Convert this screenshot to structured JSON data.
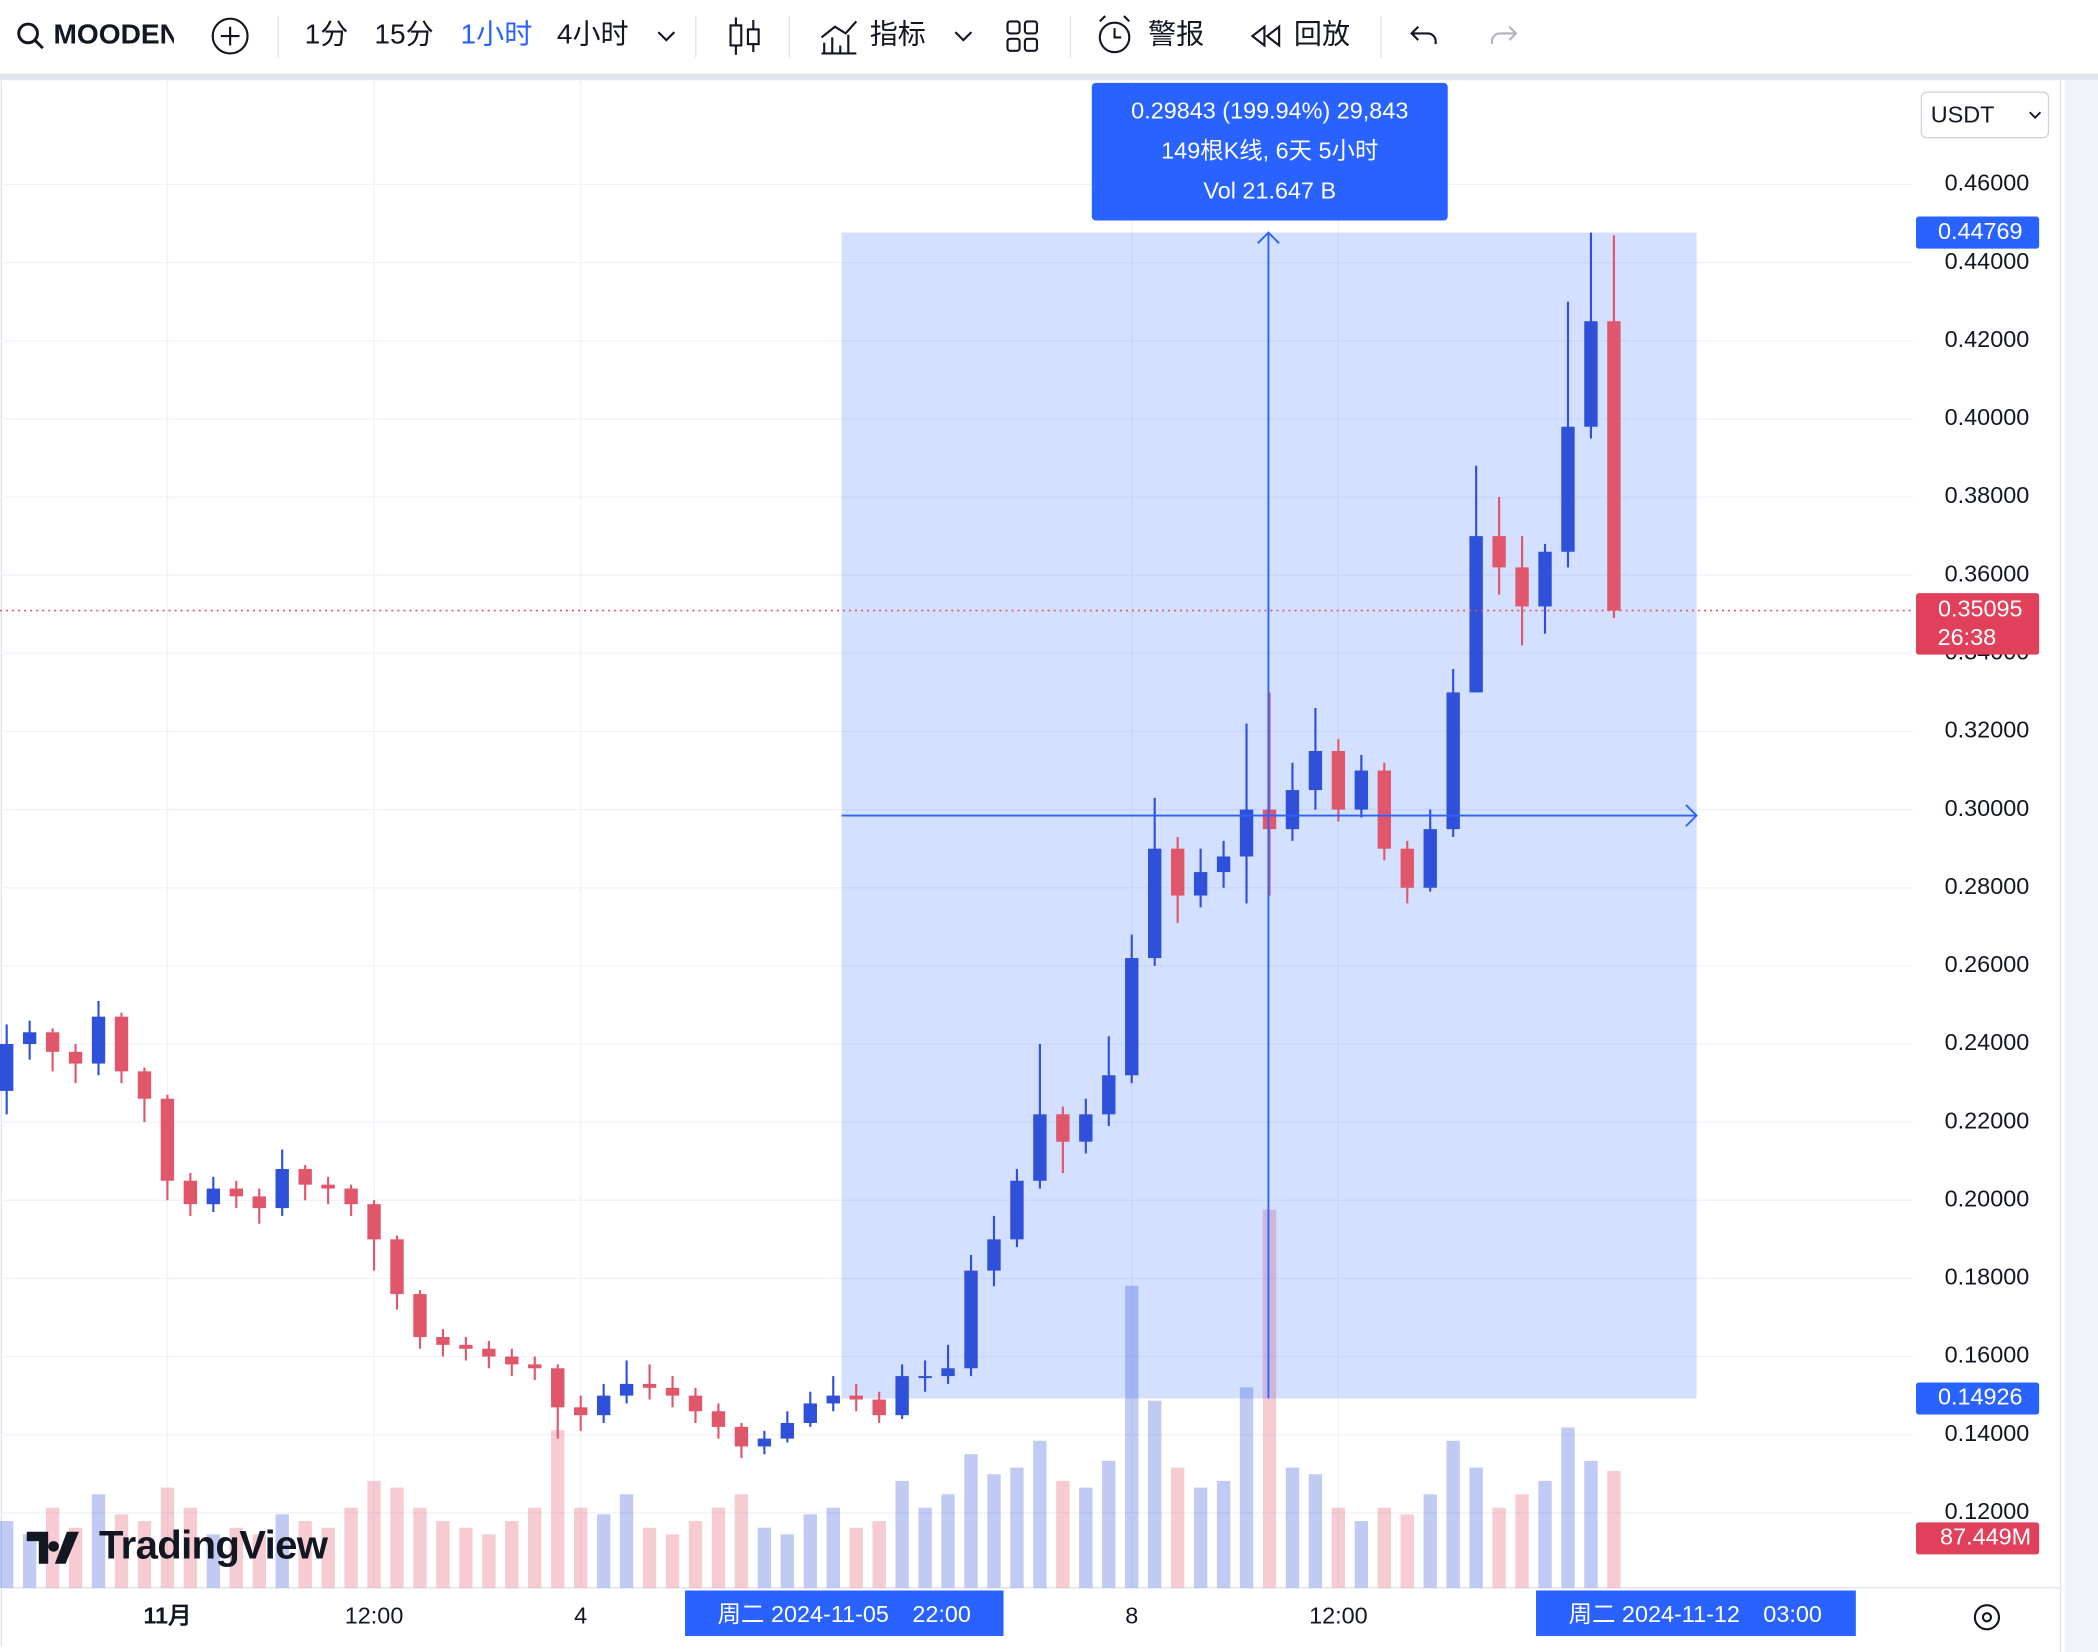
{
  "toolbar": {
    "symbol": "MOODEN",
    "intervals": [
      "1分",
      "15分",
      "1小时",
      "4小时"
    ],
    "indicators": "指标",
    "alerts": "警报",
    "replay": "回放"
  },
  "chart_data": {
    "type": "candlestick",
    "currency": "USDT",
    "brand": "TradingView",
    "categories": [
      null,
      null,
      null,
      null,
      null,
      null,
      null,
      "11月",
      null,
      null,
      null,
      null,
      null,
      null,
      null,
      null,
      "12:00",
      null,
      null,
      null,
      null,
      null,
      null,
      null,
      null,
      "4",
      null,
      null,
      null,
      null,
      null,
      null,
      null,
      null,
      null,
      null,
      null,
      null,
      null,
      null,
      null,
      null,
      null,
      null,
      null,
      null,
      null,
      null,
      null,
      "8",
      null,
      null,
      null,
      null,
      null,
      null,
      null,
      null,
      "12:00",
      null,
      null,
      null,
      null,
      null,
      null,
      null,
      null,
      null,
      null,
      null,
      null
    ],
    "open": [
      0.228,
      0.24,
      0.243,
      0.238,
      0.235,
      0.247,
      0.233,
      0.226,
      0.205,
      0.199,
      0.203,
      0.201,
      0.198,
      0.208,
      0.204,
      0.203,
      0.199,
      0.19,
      0.176,
      0.165,
      0.163,
      0.162,
      0.16,
      0.158,
      0.157,
      0.147,
      0.145,
      0.15,
      0.153,
      0.152,
      0.15,
      0.146,
      0.142,
      0.137,
      0.139,
      0.143,
      0.148,
      0.15,
      0.149,
      0.145,
      0.155,
      0.155,
      0.157,
      0.182,
      0.19,
      0.205,
      0.222,
      0.215,
      0.222,
      0.232,
      0.262,
      0.29,
      0.278,
      0.284,
      0.288,
      0.3,
      0.295,
      0.305,
      0.315,
      0.3,
      0.31,
      0.29,
      0.28,
      0.295,
      0.33,
      0.37,
      0.362,
      0.352,
      0.366,
      0.398,
      0.425
    ],
    "high": [
      0.245,
      0.246,
      0.244,
      0.24,
      0.251,
      0.248,
      0.234,
      0.227,
      0.207,
      0.206,
      0.205,
      0.203,
      0.213,
      0.209,
      0.206,
      0.204,
      0.2,
      0.191,
      0.177,
      0.167,
      0.165,
      0.164,
      0.162,
      0.16,
      0.158,
      0.15,
      0.153,
      0.159,
      0.158,
      0.155,
      0.152,
      0.148,
      0.143,
      0.141,
      0.146,
      0.151,
      0.155,
      0.153,
      0.151,
      0.158,
      0.159,
      0.163,
      0.186,
      0.196,
      0.208,
      0.24,
      0.224,
      0.226,
      0.242,
      0.268,
      0.303,
      0.293,
      0.29,
      0.292,
      0.322,
      0.33,
      0.312,
      0.326,
      0.318,
      0.314,
      0.312,
      0.292,
      0.3,
      0.336,
      0.388,
      0.38,
      0.37,
      0.368,
      0.43,
      0.44769,
      0.447
    ],
    "low": [
      0.222,
      0.236,
      0.233,
      0.23,
      0.232,
      0.23,
      0.22,
      0.2,
      0.196,
      0.197,
      0.198,
      0.194,
      0.196,
      0.2,
      0.199,
      0.196,
      0.182,
      0.172,
      0.162,
      0.16,
      0.159,
      0.157,
      0.155,
      0.154,
      0.139,
      0.141,
      0.143,
      0.148,
      0.149,
      0.147,
      0.143,
      0.139,
      0.134,
      0.135,
      0.138,
      0.142,
      0.146,
      0.146,
      0.143,
      0.144,
      0.151,
      0.153,
      0.155,
      0.178,
      0.188,
      0.203,
      0.207,
      0.212,
      0.219,
      0.23,
      0.26,
      0.271,
      0.275,
      0.28,
      0.276,
      0.278,
      0.292,
      0.3,
      0.297,
      0.298,
      0.287,
      0.276,
      0.279,
      0.293,
      0.33,
      0.355,
      0.342,
      0.345,
      0.362,
      0.395,
      0.349
    ],
    "close": [
      0.24,
      0.243,
      0.238,
      0.235,
      0.247,
      0.233,
      0.226,
      0.205,
      0.199,
      0.203,
      0.201,
      0.198,
      0.208,
      0.204,
      0.203,
      0.199,
      0.19,
      0.176,
      0.165,
      0.163,
      0.162,
      0.16,
      0.158,
      0.157,
      0.147,
      0.145,
      0.15,
      0.153,
      0.152,
      0.15,
      0.146,
      0.142,
      0.137,
      0.139,
      0.143,
      0.148,
      0.15,
      0.149,
      0.145,
      0.155,
      0.155,
      0.157,
      0.182,
      0.19,
      0.205,
      0.222,
      0.215,
      0.222,
      0.232,
      0.262,
      0.29,
      0.278,
      0.284,
      0.288,
      0.3,
      0.295,
      0.305,
      0.315,
      0.3,
      0.31,
      0.29,
      0.28,
      0.295,
      0.33,
      0.37,
      0.362,
      0.352,
      0.366,
      0.398,
      0.425,
      0.35095
    ],
    "volume": [
      50,
      40,
      60,
      45,
      70,
      55,
      50,
      75,
      60,
      40,
      45,
      40,
      55,
      50,
      45,
      60,
      80,
      75,
      60,
      50,
      45,
      40,
      50,
      60,
      118,
      60,
      55,
      70,
      45,
      40,
      50,
      60,
      70,
      45,
      40,
      55,
      60,
      45,
      50,
      80,
      60,
      70,
      100,
      85,
      90,
      110,
      80,
      75,
      95,
      226,
      140,
      90,
      75,
      80,
      150,
      283,
      90,
      85,
      60,
      50,
      60,
      55,
      70,
      110,
      90,
      60,
      70,
      80,
      120,
      95,
      87.449
    ],
    "volume_label": "87.449M",
    "volume_lim": [
      0,
      1128
    ],
    "up_color": "#2f50d8",
    "down_color": "#e0566a",
    "ylim": [
      0.1008,
      0.4867
    ],
    "yticks": [
      {
        "value": 0.46,
        "label": "0.46000"
      },
      {
        "value": 0.44,
        "label": "0.44000"
      },
      {
        "value": 0.42,
        "label": "0.42000"
      },
      {
        "value": 0.4,
        "label": "0.40000"
      },
      {
        "value": 0.38,
        "label": "0.38000"
      },
      {
        "value": 0.36,
        "label": "0.36000"
      },
      {
        "value": 0.34,
        "label": "0.34000"
      },
      {
        "value": 0.32,
        "label": "0.32000"
      },
      {
        "value": 0.3,
        "label": "0.30000"
      },
      {
        "value": 0.28,
        "label": "0.28000"
      },
      {
        "value": 0.26,
        "label": "0.26000"
      },
      {
        "value": 0.24,
        "label": "0.24000"
      },
      {
        "value": 0.22,
        "label": "0.22000"
      },
      {
        "value": 0.2,
        "label": "0.20000"
      },
      {
        "value": 0.18,
        "label": "0.18000"
      },
      {
        "value": 0.16,
        "label": "0.16000"
      },
      {
        "value": 0.14,
        "label": "0.14000"
      },
      {
        "value": 0.12,
        "label": "0.12000"
      }
    ],
    "grid": true,
    "countdown": "26:38",
    "measure": {
      "high": 0.44769,
      "low": 0.14926,
      "lines": [
        "0.29843 (199.94%) 29,843",
        "149根K线, 6天 5小时",
        "Vol 21.647 B"
      ],
      "start_label": "周二 2024-11-05　22:00",
      "end_label": "周二 2024-11-12　03:00"
    }
  }
}
